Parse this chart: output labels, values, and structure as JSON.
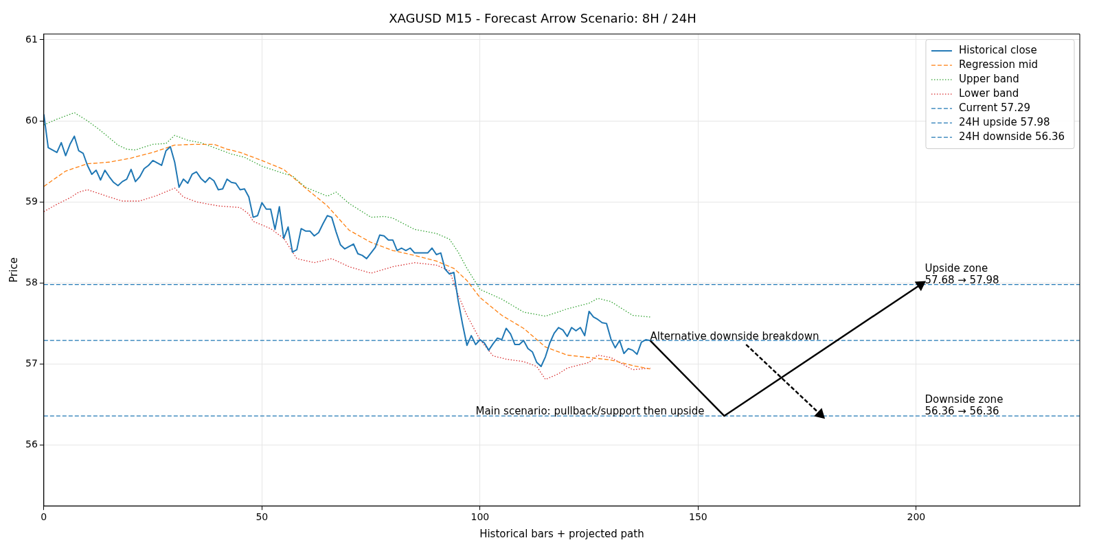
{
  "chart_data": {
    "type": "line",
    "title": "XAGUSD M15 - Forecast Arrow Scenario: 8H / 24H",
    "xlabel": "Historical bars + projected path",
    "ylabel": "Price",
    "xlim": [
      0,
      237.5
    ],
    "xticks": [
      0,
      50,
      100,
      150,
      200
    ],
    "ylim": [
      55.25,
      61.07
    ],
    "yticks": [
      56,
      57,
      58,
      59,
      60,
      61
    ],
    "grid": true,
    "legend": "top right",
    "series": [
      {
        "name": "Historical close",
        "color": "#1f77b4",
        "line_style": "solid",
        "x": [
          0,
          1,
          2,
          3,
          4,
          5,
          6,
          7,
          8,
          9,
          10,
          11,
          12,
          13,
          14,
          15,
          16,
          17,
          18,
          19,
          20,
          21,
          22,
          23,
          24,
          25,
          26,
          27,
          28,
          29,
          30,
          31,
          32,
          33,
          34,
          35,
          36,
          37,
          38,
          39,
          40,
          41,
          42,
          43,
          44,
          45,
          46,
          47,
          48,
          49,
          50,
          51,
          52,
          53,
          54,
          55,
          56,
          57,
          58,
          59,
          60,
          61,
          62,
          63,
          64,
          65,
          66,
          67,
          68,
          69,
          70,
          71,
          72,
          73,
          74,
          75,
          76,
          77,
          78,
          79,
          80,
          81,
          82,
          83,
          84,
          85,
          86,
          87,
          88,
          89,
          90,
          91,
          92,
          93,
          94,
          95,
          96,
          97,
          98,
          99,
          100,
          101,
          102,
          103,
          104,
          105,
          106,
          107,
          108,
          109,
          110,
          111,
          112,
          113,
          114,
          115,
          116,
          117,
          118,
          119,
          120,
          121,
          122,
          123,
          124,
          125,
          126,
          127,
          128,
          129,
          130,
          131,
          132,
          133,
          134,
          135,
          136,
          137,
          138,
          139
        ],
        "values": [
          60.08,
          59.67,
          59.64,
          59.61,
          59.73,
          59.57,
          59.71,
          59.81,
          59.63,
          59.6,
          59.45,
          59.34,
          59.39,
          59.27,
          59.39,
          59.31,
          59.24,
          59.2,
          59.25,
          59.28,
          59.4,
          59.25,
          59.31,
          59.41,
          59.45,
          59.51,
          59.48,
          59.45,
          59.63,
          59.68,
          59.49,
          59.18,
          59.28,
          59.23,
          59.34,
          59.37,
          59.29,
          59.24,
          59.3,
          59.26,
          59.15,
          59.16,
          59.28,
          59.24,
          59.23,
          59.15,
          59.16,
          59.06,
          58.81,
          58.83,
          58.99,
          58.91,
          58.91,
          58.66,
          58.94,
          58.55,
          58.69,
          58.38,
          58.41,
          58.67,
          58.64,
          58.64,
          58.58,
          58.62,
          58.73,
          58.83,
          58.81,
          58.63,
          58.47,
          58.42,
          58.45,
          58.48,
          58.36,
          58.34,
          58.3,
          58.37,
          58.44,
          58.59,
          58.58,
          58.53,
          58.53,
          58.4,
          58.43,
          58.4,
          58.43,
          58.37,
          58.37,
          58.37,
          58.37,
          58.43,
          58.35,
          58.37,
          58.17,
          58.11,
          58.13,
          57.78,
          57.49,
          57.23,
          57.35,
          57.24,
          57.3,
          57.26,
          57.17,
          57.25,
          57.32,
          57.3,
          57.44,
          57.37,
          57.24,
          57.24,
          57.29,
          57.19,
          57.15,
          57.02,
          56.97,
          57.09,
          57.26,
          57.38,
          57.45,
          57.42,
          57.34,
          57.45,
          57.41,
          57.45,
          57.35,
          57.65,
          57.58,
          57.55,
          57.51,
          57.5,
          57.31,
          57.2,
          57.29,
          57.13,
          57.19,
          57.17,
          57.12,
          57.27,
          57.3,
          57.29
        ]
      },
      {
        "name": "Regression mid",
        "color": "#ff7f0e",
        "line_style": "dashed",
        "x": [
          0,
          5,
          10,
          15,
          20,
          25,
          30,
          35,
          39,
          42,
          45,
          50,
          55,
          60,
          65,
          70,
          75,
          80,
          85,
          90,
          94,
          97,
          100,
          105,
          110,
          115,
          120,
          125,
          130,
          135,
          139
        ],
        "values": [
          59.19,
          59.38,
          59.47,
          59.49,
          59.54,
          59.61,
          59.7,
          59.71,
          59.71,
          59.65,
          59.61,
          59.51,
          59.4,
          59.17,
          58.95,
          58.65,
          58.5,
          58.4,
          58.34,
          58.27,
          58.18,
          58.03,
          57.82,
          57.6,
          57.44,
          57.21,
          57.11,
          57.08,
          57.05,
          56.98,
          56.94
        ]
      },
      {
        "name": "Upper band",
        "color": "#2ca02c",
        "line_style": "dotted",
        "x": [
          0,
          3,
          7,
          10,
          13,
          17,
          19,
          21,
          25,
          28,
          30,
          33,
          36,
          40,
          43,
          46,
          50,
          55,
          57,
          60,
          65,
          67,
          70,
          75,
          78,
          80,
          85,
          90,
          93,
          95,
          97,
          100,
          105,
          110,
          115,
          120,
          125,
          127,
          130,
          135,
          139
        ],
        "values": [
          59.95,
          60.02,
          60.1,
          60.0,
          59.88,
          59.7,
          59.65,
          59.64,
          59.71,
          59.72,
          59.82,
          59.76,
          59.73,
          59.65,
          59.59,
          59.55,
          59.44,
          59.35,
          59.32,
          59.18,
          59.07,
          59.12,
          58.98,
          58.81,
          58.82,
          58.8,
          58.66,
          58.61,
          58.54,
          58.38,
          58.18,
          57.92,
          57.8,
          57.64,
          57.59,
          57.68,
          57.75,
          57.81,
          57.77,
          57.6,
          57.58
        ]
      },
      {
        "name": "Lower band",
        "color": "#d62728",
        "line_style": "dotted",
        "x": [
          0,
          3,
          6,
          8,
          10,
          15,
          18,
          22,
          26,
          30,
          32,
          35,
          40,
          45,
          47,
          48,
          52,
          55,
          58,
          62,
          66,
          70,
          75,
          80,
          85,
          90,
          93,
          95,
          97,
          100,
          103,
          106,
          110,
          113,
          115,
          118,
          120,
          125,
          127,
          130,
          135,
          139
        ],
        "values": [
          58.88,
          58.97,
          59.05,
          59.12,
          59.15,
          59.06,
          59.01,
          59.01,
          59.08,
          59.17,
          59.06,
          59.0,
          58.95,
          58.93,
          58.85,
          58.76,
          58.67,
          58.55,
          58.3,
          58.25,
          58.3,
          58.2,
          58.12,
          58.2,
          58.25,
          58.22,
          58.15,
          57.85,
          57.6,
          57.3,
          57.1,
          57.06,
          57.03,
          56.97,
          56.81,
          56.88,
          56.95,
          57.02,
          57.11,
          57.08,
          56.93,
          56.95
        ]
      },
      {
        "color": "#000000",
        "line_style": "solid",
        "x": [
          139,
          156,
          201
        ],
        "values": [
          57.29,
          56.36,
          57.98
        ]
      },
      {
        "color": "#000000",
        "line_style": "dashed",
        "x": [
          161,
          178
        ],
        "values": [
          57.24,
          56.38
        ]
      }
    ],
    "ref_lines": [
      {
        "axis": "y",
        "value": 57.29,
        "label": "Current 57.29",
        "color": "#1f77b4",
        "line_style": "dashed"
      },
      {
        "axis": "y",
        "value": 57.98,
        "label": "24H upside 57.98",
        "color": "#1f77b4",
        "line_style": "dashed"
      },
      {
        "axis": "y",
        "value": 56.36,
        "label": "24H downside 56.36",
        "color": "#1f77b4",
        "line_style": "dashed"
      }
    ],
    "annotations": [
      {
        "text": "Main scenario: pullback/support then upside",
        "x": 99,
        "y": 56.36
      },
      {
        "text": "Alternative downside breakdown",
        "x": 139,
        "y": 57.29
      },
      {
        "text": "Upside zone\n57.68 → 57.98",
        "x": 202,
        "y": 57.98
      },
      {
        "text": "Downside zone\n56.36 → 56.36",
        "x": 202,
        "y": 56.36
      }
    ]
  }
}
